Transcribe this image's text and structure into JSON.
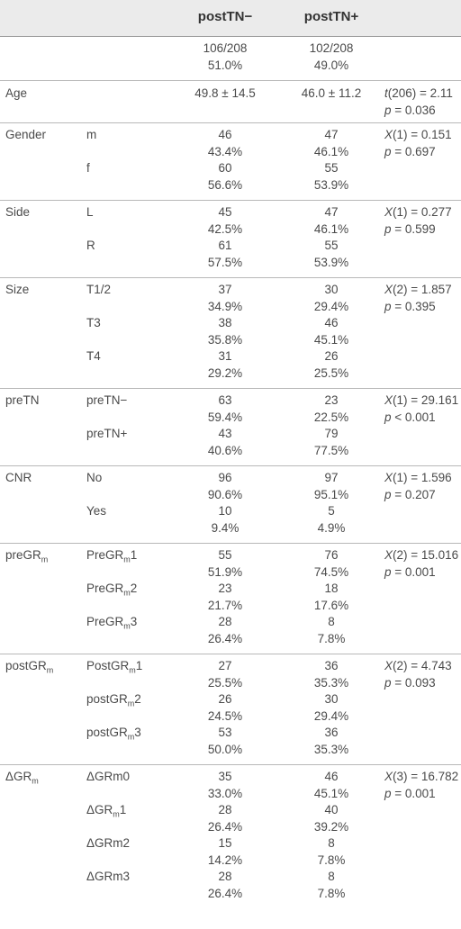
{
  "header": {
    "col_a": "postTN−",
    "col_b": "postTN+"
  },
  "rows": {
    "totals": {
      "a1": "106/208",
      "a2": "51.0%",
      "b1": "102/208",
      "b2": "49.0%"
    },
    "age": {
      "label": "Age",
      "a": "49.8 ± 14.5",
      "b": "46.0 ± 11.2",
      "s1_var": "t",
      "s1_rest": "(206) = 2.11",
      "s2_var": "p",
      "s2_rest": " = 0.036"
    },
    "gender": {
      "label": "Gender",
      "subs": [
        {
          "name": "m",
          "a1": "46",
          "a2": "43.4%",
          "b1": "47",
          "b2": "46.1%"
        },
        {
          "name": "f",
          "a1": "60",
          "a2": "56.6%",
          "b1": "55",
          "b2": "53.9%"
        }
      ],
      "s1_var": "X",
      "s1_rest": "(1) = 0.151",
      "s2_var": "p",
      "s2_rest": " = 0.697"
    },
    "side": {
      "label": "Side",
      "subs": [
        {
          "name": "L",
          "a1": "45",
          "a2": "42.5%",
          "b1": "47",
          "b2": "46.1%"
        },
        {
          "name": "R",
          "a1": "61",
          "a2": "57.5%",
          "b1": "55",
          "b2": "53.9%"
        }
      ],
      "s1_var": "X",
      "s1_rest": "(1) = 0.277",
      "s2_var": "p",
      "s2_rest": " = 0.599"
    },
    "size": {
      "label": "Size",
      "subs": [
        {
          "name": "T1/2",
          "a1": "37",
          "a2": "34.9%",
          "b1": "30",
          "b2": "29.4%"
        },
        {
          "name": "T3",
          "a1": "38",
          "a2": "35.8%",
          "b1": "46",
          "b2": "45.1%"
        },
        {
          "name": "T4",
          "a1": "31",
          "a2": "29.2%",
          "b1": "26",
          "b2": "25.5%"
        }
      ],
      "s1_var": "X",
      "s1_rest": "(2) = 1.857",
      "s2_var": "p",
      "s2_rest": " = 0.395"
    },
    "pretn": {
      "label": "preTN",
      "subs": [
        {
          "name": "preTN−",
          "a1": "63",
          "a2": "59.4%",
          "b1": "23",
          "b2": "22.5%"
        },
        {
          "name": "preTN+",
          "a1": "43",
          "a2": "40.6%",
          "b1": "79",
          "b2": "77.5%"
        }
      ],
      "s1_var": "X",
      "s1_rest": "(1) = 29.161",
      "s2_var": "p",
      "s2_rest": " < 0.001"
    },
    "cnr": {
      "label": "CNR",
      "subs": [
        {
          "name": "No",
          "a1": "96",
          "a2": "90.6%",
          "b1": "97",
          "b2": "95.1%"
        },
        {
          "name": "Yes",
          "a1": "10",
          "a2": "9.4%",
          "b1": "5",
          "b2": "4.9%"
        }
      ],
      "s1_var": "X",
      "s1_rest": "(1) = 1.596",
      "s2_var": "p",
      "s2_rest": " = 0.207"
    },
    "pregr": {
      "label": "preGR",
      "label_sub": "m",
      "subs": [
        {
          "pre": "PreGR",
          "sub": "m",
          "post": "1",
          "a1": "55",
          "a2": "51.9%",
          "b1": "76",
          "b2": "74.5%"
        },
        {
          "pre": "PreGR",
          "sub": "m",
          "post": "2",
          "a1": "23",
          "a2": "21.7%",
          "b1": "18",
          "b2": "17.6%"
        },
        {
          "pre": "PreGR",
          "sub": "m",
          "post": "3",
          "a1": "28",
          "a2": "26.4%",
          "b1": "8",
          "b2": "7.8%"
        }
      ],
      "s1_var": "X",
      "s1_rest": "(2) = 15.016",
      "s2_var": "p",
      "s2_rest": " = 0.001"
    },
    "postgr": {
      "label": "postGR",
      "label_sub": "m",
      "subs": [
        {
          "pre": "PostGR",
          "sub": "m",
          "post": "1",
          "a1": "27",
          "a2": "25.5%",
          "b1": "36",
          "b2": "35.3%"
        },
        {
          "pre": "postGR",
          "sub": "m",
          "post": "2",
          "a1": "26",
          "a2": "24.5%",
          "b1": "30",
          "b2": "29.4%"
        },
        {
          "pre": "postGR",
          "sub": "m",
          "post": "3",
          "a1": "53",
          "a2": "50.0%",
          "b1": "36",
          "b2": "35.3%"
        }
      ],
      "s1_var": "X",
      "s1_rest": "(2) = 4.743",
      "s2_var": "p",
      "s2_rest": " = 0.093"
    },
    "dgr": {
      "label": "ΔGR",
      "label_sub": "m",
      "subs": [
        {
          "pre": "ΔGRm0",
          "sub": "",
          "post": "",
          "a1": "35",
          "a2": "33.0%",
          "b1": "46",
          "b2": "45.1%"
        },
        {
          "pre": "ΔGR",
          "sub": "m",
          "post": "1",
          "a1": "28",
          "a2": "26.4%",
          "b1": "40",
          "b2": "39.2%"
        },
        {
          "pre": "ΔGRm2",
          "sub": "",
          "post": "",
          "a1": "15",
          "a2": "14.2%",
          "b1": "8",
          "b2": "7.8%"
        },
        {
          "pre": "ΔGRm3",
          "sub": "",
          "post": "",
          "a1": "28",
          "a2": "26.4%",
          "b1": "8",
          "b2": "7.8%"
        }
      ],
      "s1_var": "X",
      "s1_rest": "(3) = 16.782",
      "s2_var": "p",
      "s2_rest": " = 0.001"
    }
  }
}
